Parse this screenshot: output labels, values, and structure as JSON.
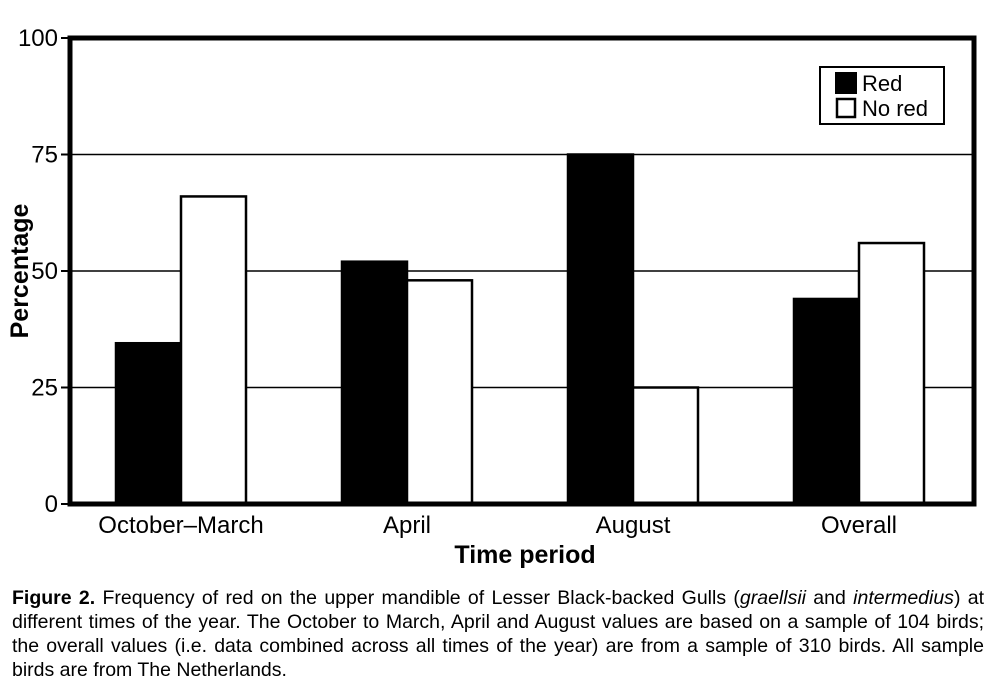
{
  "chart_data": {
    "type": "bar",
    "categories": [
      "October–March",
      "April",
      "August",
      "Overall"
    ],
    "series": [
      {
        "name": "Red",
        "values": [
          34.5,
          52,
          75,
          44
        ],
        "color": "#000000"
      },
      {
        "name": "No red",
        "values": [
          66,
          48,
          25,
          56
        ],
        "color": "#ffffff"
      }
    ],
    "xlabel": "Time period",
    "ylabel": "Percentage",
    "ylim": [
      0,
      100
    ],
    "yticks": [
      0,
      25,
      50,
      75,
      100
    ],
    "grid": true,
    "legend_position": "top-right"
  },
  "caption": {
    "label": "Figure 2.",
    "text_part1": " Frequency of red on the upper mandible of Lesser Black-backed Gulls (",
    "italic1": "graellsii",
    "text_part2": " and ",
    "italic2": "intermedius",
    "text_part3": ") at different times of the year. The October to March, April and August values are based on a sample of 104 birds; the overall values (i.e. data combined across all times of the year) are from a sample of 310 birds. All sample birds are from The Netherlands."
  }
}
